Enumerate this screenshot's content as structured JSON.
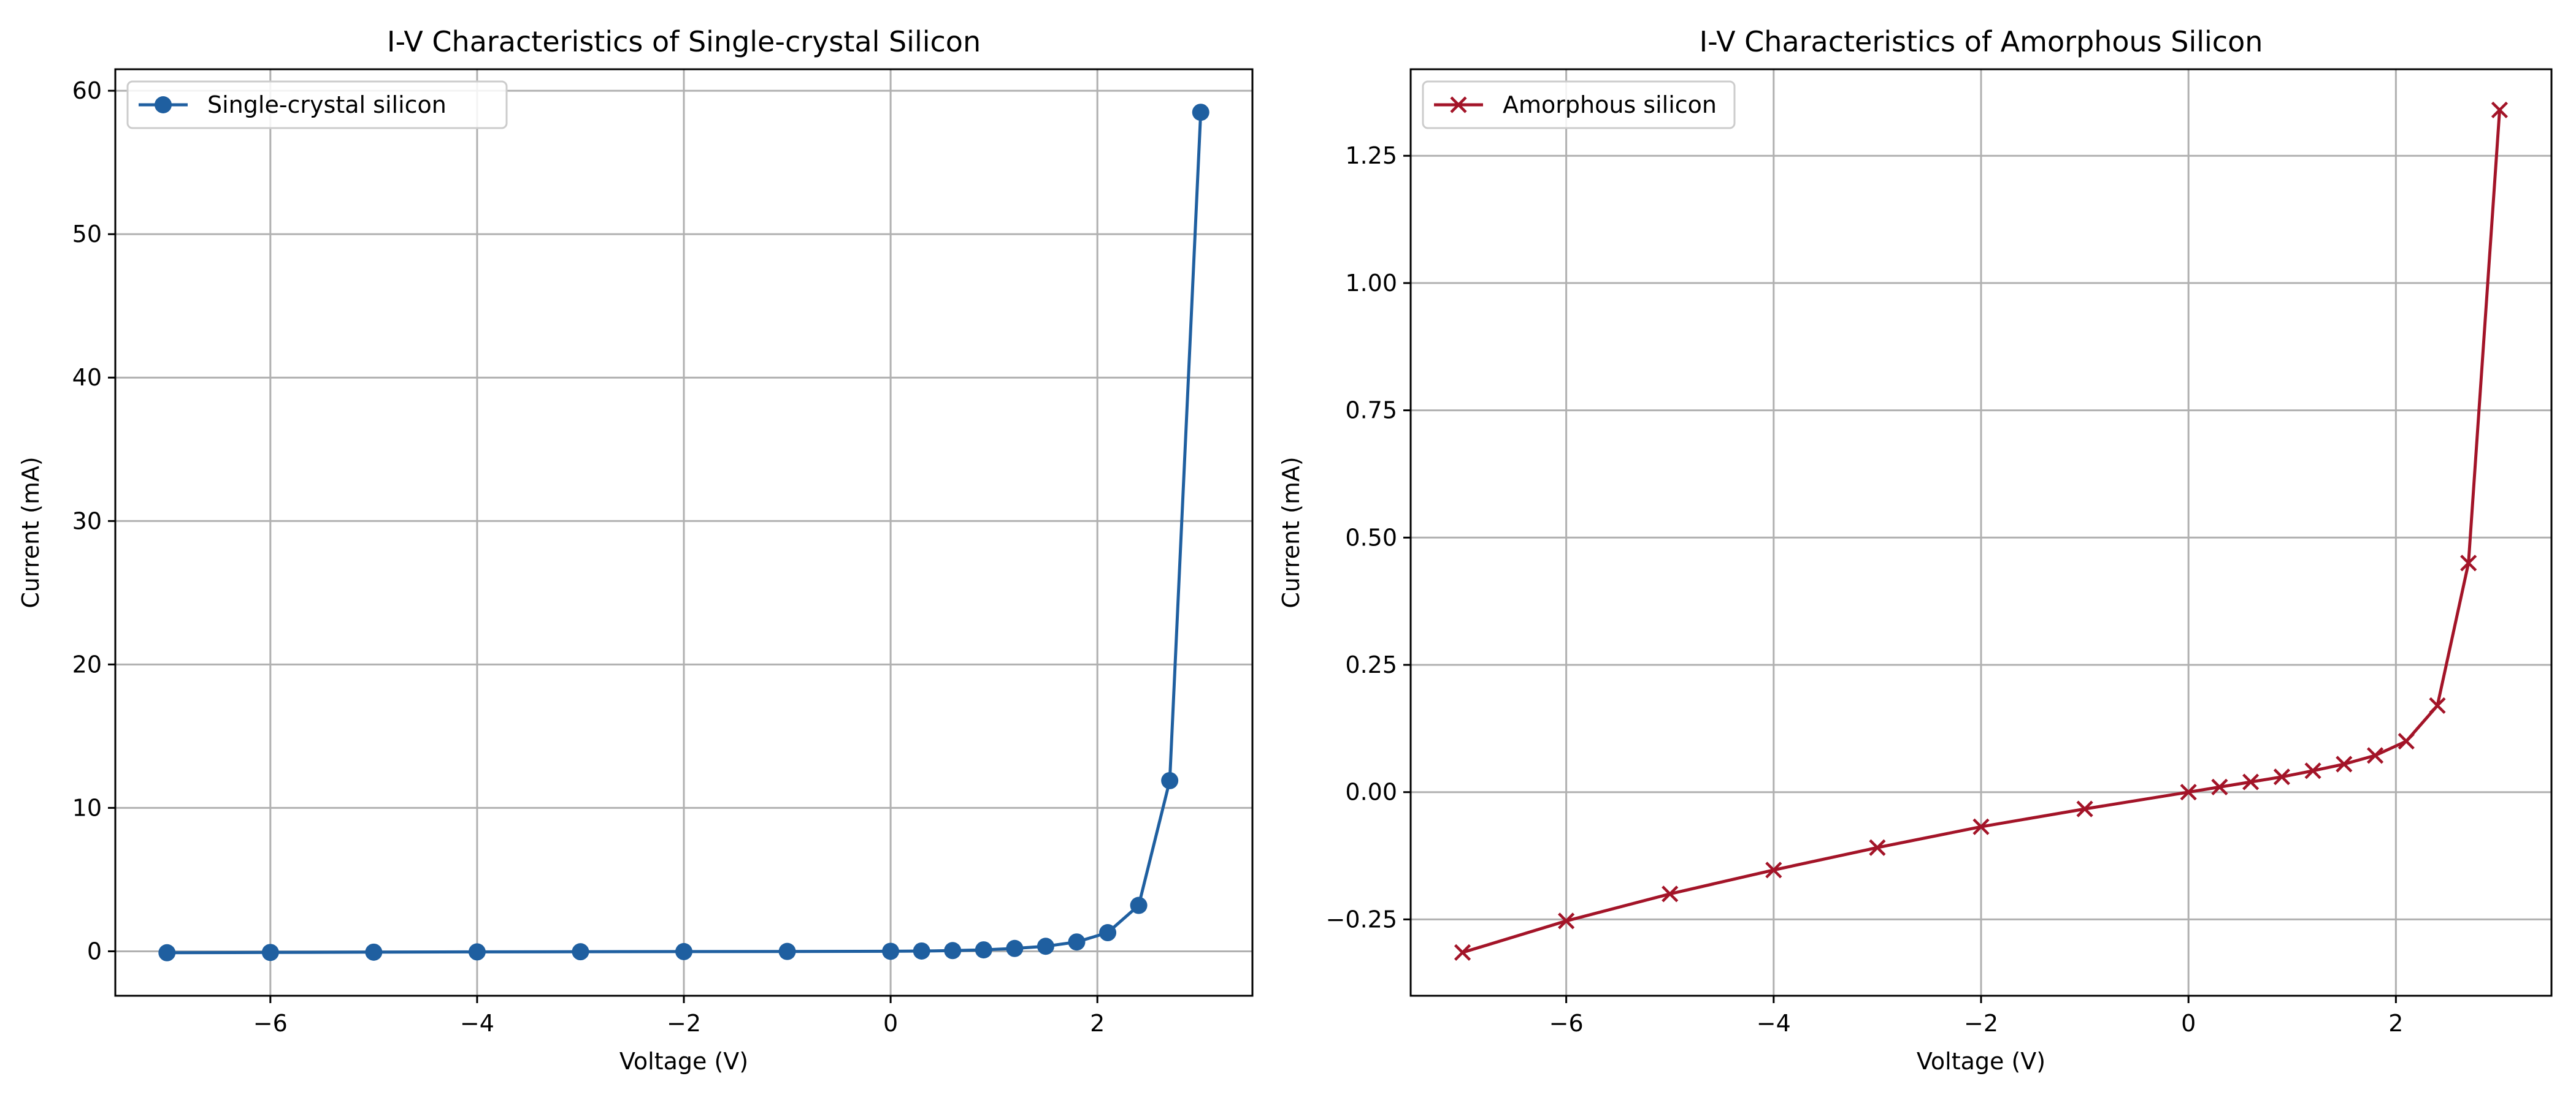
{
  "chart_data": [
    {
      "type": "line",
      "title": "I-V Characteristics of Single-crystal Silicon",
      "xlabel": "Voltage (V)",
      "ylabel": "Current (mA)",
      "xlim": [
        -7.5,
        3.5
      ],
      "ylim": [
        -3.1,
        61.5
      ],
      "xticks": [
        -6,
        -4,
        -2,
        0,
        2
      ],
      "yticks": [
        0,
        10,
        20,
        30,
        40,
        50,
        60
      ],
      "grid": true,
      "legend_position": "top-left",
      "series": [
        {
          "name": "Single-crystal silicon",
          "color": "#1f5fa0",
          "marker": "circle",
          "x": [
            -7,
            -6,
            -5,
            -4,
            -3,
            -2,
            -1,
            0,
            0.3,
            0.6,
            0.9,
            1.2,
            1.5,
            1.8,
            2.1,
            2.4,
            2.7,
            3.0
          ],
          "y": [
            -0.1,
            -0.08,
            -0.06,
            -0.04,
            -0.03,
            -0.02,
            -0.01,
            0.0,
            0.02,
            0.05,
            0.1,
            0.2,
            0.35,
            0.65,
            1.3,
            3.2,
            11.9,
            58.5
          ]
        }
      ]
    },
    {
      "type": "line",
      "title": "I-V Characteristics of Amorphous Silicon",
      "xlabel": "Voltage (V)",
      "ylabel": "Current (mA)",
      "xlim": [
        -7.5,
        3.5
      ],
      "ylim": [
        -0.4,
        1.42
      ],
      "xticks": [
        -6,
        -4,
        -2,
        0,
        2
      ],
      "yticks": [
        -0.25,
        0.0,
        0.25,
        0.5,
        0.75,
        1.0,
        1.25
      ],
      "yticklabels": [
        "−0.25",
        "0.00",
        "0.25",
        "0.50",
        "0.75",
        "1.00",
        "1.25"
      ],
      "grid": true,
      "legend_position": "top-left",
      "series": [
        {
          "name": "Amorphous silicon",
          "color": "#a31428",
          "marker": "x",
          "x": [
            -7,
            -6,
            -5,
            -4,
            -3,
            -2,
            -1,
            0,
            0.3,
            0.6,
            0.9,
            1.2,
            1.5,
            1.8,
            2.1,
            2.4,
            2.7,
            3.0
          ],
          "y": [
            -0.315,
            -0.253,
            -0.2,
            -0.153,
            -0.109,
            -0.068,
            -0.033,
            0.0,
            0.01,
            0.02,
            0.03,
            0.042,
            0.055,
            0.072,
            0.1,
            0.17,
            0.45,
            1.34
          ]
        }
      ]
    }
  ]
}
